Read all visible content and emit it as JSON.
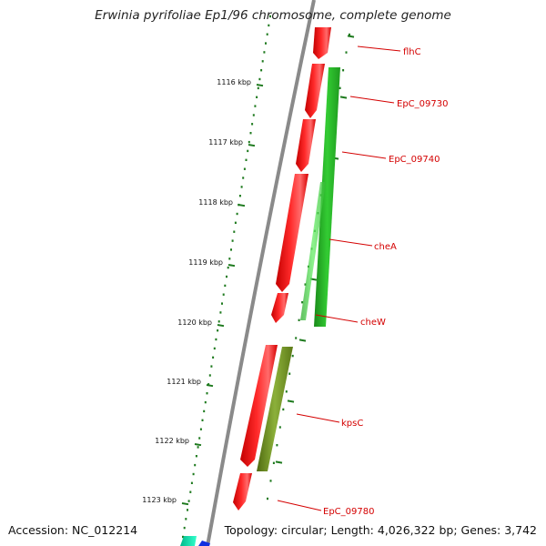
{
  "title": "Erwinia pyrifoliae Ep1/96 chromosome, complete genome",
  "accession_label": "Accession: NC_012214",
  "stats_label": "Topology: circular; Length: 4,026,322 bp; Genes: 3,742",
  "colors": {
    "backbone": "#8a8a8a",
    "tick": "#1e7a1e",
    "gene_forward": "#ff1a1a",
    "gene_reverse_green": "#2fbf2f",
    "gene_reverse_olive": "#7a9a2a",
    "label": "#d40000"
  },
  "tick_labels": [
    "1116 kbp",
    "1117 kbp",
    "1118 kbp",
    "1119 kbp",
    "1120 kbp",
    "1121 kbp",
    "1122 kbp",
    "1123 kbp"
  ],
  "gene_labels": [
    "flhC",
    "EpC_09730",
    "EpC_09740",
    "cheA",
    "cheW",
    "kpsC",
    "EpC_09780"
  ]
}
